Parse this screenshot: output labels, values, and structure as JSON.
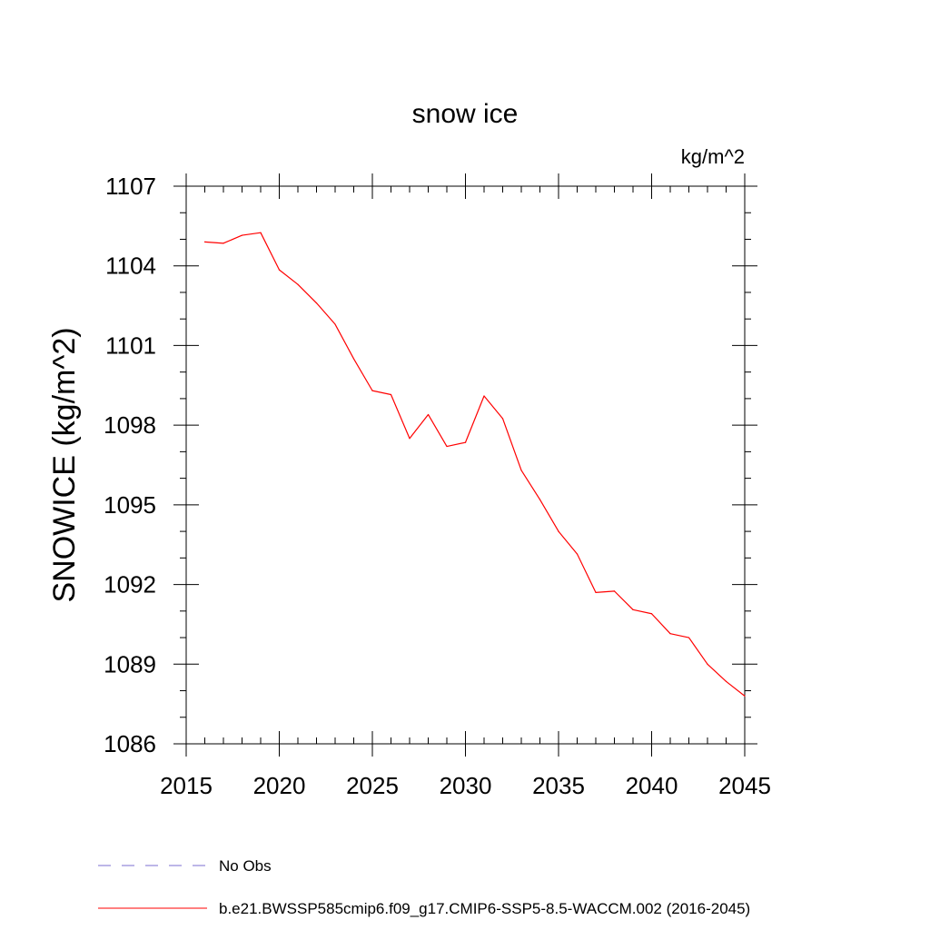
{
  "chart_data": {
    "type": "line",
    "title": "snow ice",
    "units_label": "kg/m^2",
    "ylabel": "SNOWICE  (kg/m^2)",
    "xlabel": "",
    "xlim": [
      2015,
      2045
    ],
    "ylim": [
      1086,
      1107
    ],
    "x_ticks": [
      2015,
      2020,
      2025,
      2030,
      2035,
      2040,
      2045
    ],
    "y_ticks": [
      1086,
      1089,
      1092,
      1095,
      1098,
      1101,
      1104,
      1107
    ],
    "x_minor_step": 1,
    "y_minor_step": 1,
    "grid": false,
    "legend_placement": "bottom",
    "series": [
      {
        "name": "b.e21.BWSSP585cmip6.f09_g17.CMIP6-SSP5-8.5-WACCM.002 (2016-2045)",
        "color": "#ff0000",
        "dash": "solid",
        "x": [
          2016,
          2017,
          2018,
          2019,
          2020,
          2021,
          2022,
          2023,
          2024,
          2025,
          2026,
          2027,
          2028,
          2029,
          2030,
          2031,
          2032,
          2033,
          2034,
          2035,
          2036,
          2037,
          2038,
          2039,
          2040,
          2041,
          2042,
          2043,
          2044,
          2045
        ],
        "y": [
          1104.9,
          1104.85,
          1105.15,
          1105.25,
          1103.85,
          1103.3,
          1102.6,
          1101.8,
          1100.5,
          1099.3,
          1099.15,
          1097.5,
          1098.4,
          1097.2,
          1097.35,
          1099.1,
          1098.25,
          1096.3,
          1095.2,
          1094.0,
          1093.15,
          1091.7,
          1091.75,
          1091.05,
          1090.9,
          1090.15,
          1090.0,
          1089.0,
          1088.35,
          1087.8
        ]
      }
    ],
    "legend": [
      {
        "label": "No Obs",
        "color": "#7b6fd0",
        "dash": "dashed"
      },
      {
        "label": "b.e21.BWSSP585cmip6.f09_g17.CMIP6-SSP5-8.5-WACCM.002 (2016-2045)",
        "color": "#ff0000",
        "dash": "solid"
      }
    ]
  }
}
